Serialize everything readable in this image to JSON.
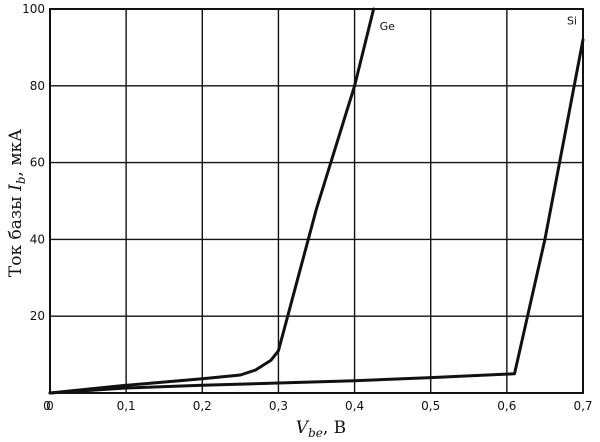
{
  "chart_data": {
    "type": "line",
    "title": "",
    "xlabel": "V_be, В",
    "ylabel": "Ток базы I_b, мкА",
    "xlim": [
      0,
      0.7
    ],
    "ylim": [
      0,
      100
    ],
    "x_ticks": [
      "0",
      "0,1",
      "0,2",
      "0,3",
      "0,4",
      "0,5",
      "0,6",
      "0,7"
    ],
    "y_ticks": [
      "20",
      "40",
      "60",
      "80",
      "100"
    ],
    "grid": true,
    "series": [
      {
        "name": "Ge",
        "x": [
          0,
          0.1,
          0.2,
          0.25,
          0.27,
          0.29,
          0.3,
          0.35,
          0.4,
          0.425
        ],
        "y": [
          0,
          2,
          3.7,
          4.7,
          6,
          8.5,
          11,
          48,
          80,
          100
        ]
      },
      {
        "name": "Si",
        "x": [
          0,
          0.1,
          0.2,
          0.3,
          0.4,
          0.5,
          0.61,
          0.65,
          0.7
        ],
        "y": [
          0,
          1.3,
          2,
          2.6,
          3.2,
          4,
          5,
          40,
          92
        ]
      }
    ]
  }
}
